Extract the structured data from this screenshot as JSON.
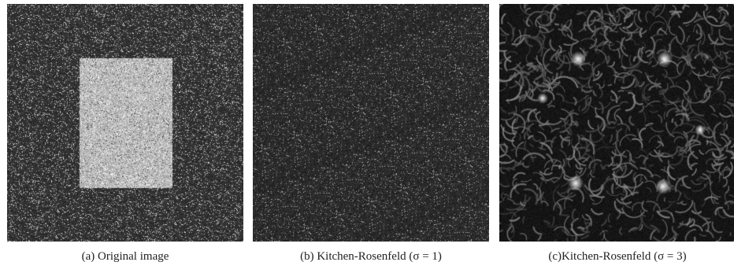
{
  "figure": {
    "panels": [
      {
        "id": "a",
        "caption": "(a) Original image"
      },
      {
        "id": "b",
        "caption": "(b) Kitchen-Rosenfeld (σ = 1)"
      },
      {
        "id": "c",
        "caption": "(c)Kitchen-Rosenfeld (σ = 3)"
      }
    ]
  }
}
